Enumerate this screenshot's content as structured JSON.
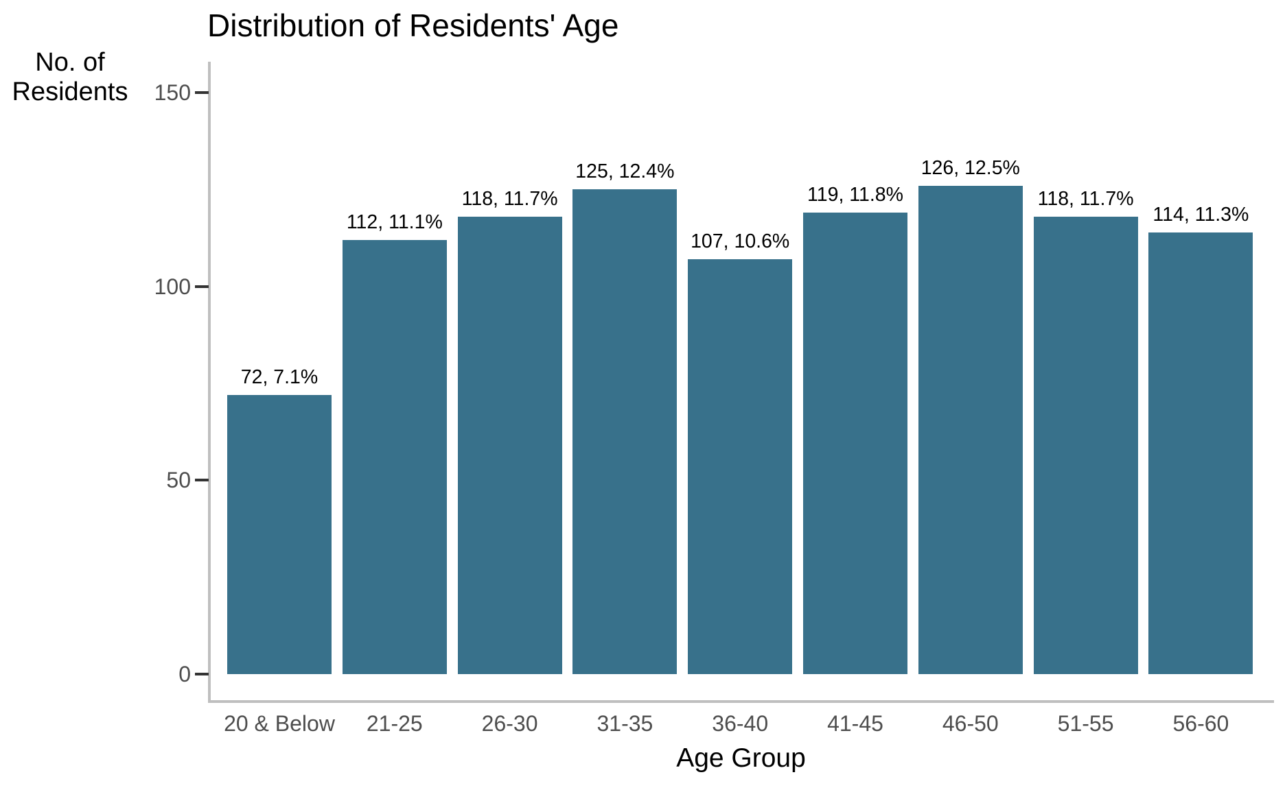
{
  "chart_data": {
    "type": "bar",
    "title": "Distribution of Residents' Age",
    "xlabel": "Age Group",
    "ylabel": "No. of Residents",
    "ylabel_lines": [
      "No. of",
      "Residents"
    ],
    "categories": [
      "20 & Below",
      "21-25",
      "26-30",
      "31-35",
      "36-40",
      "41-45",
      "46-50",
      "51-55",
      "56-60"
    ],
    "values": [
      72,
      112,
      118,
      125,
      107,
      119,
      126,
      118,
      114
    ],
    "bar_labels": [
      "72, 7.1%",
      "112, 11.1%",
      "118, 11.7%",
      "125, 12.4%",
      "107, 10.6%",
      "119, 11.8%",
      "126, 12.5%",
      "118, 11.7%",
      "114, 11.3%"
    ],
    "yticks": [
      0,
      50,
      100,
      150
    ],
    "ylim": [
      0,
      150
    ],
    "grid": false,
    "legend": "none",
    "bar_color": "#38718b",
    "axis_line_color": "#bfbfbf",
    "tick_mark_color": "#333333",
    "tick_label_color": "#4d4d4d"
  }
}
